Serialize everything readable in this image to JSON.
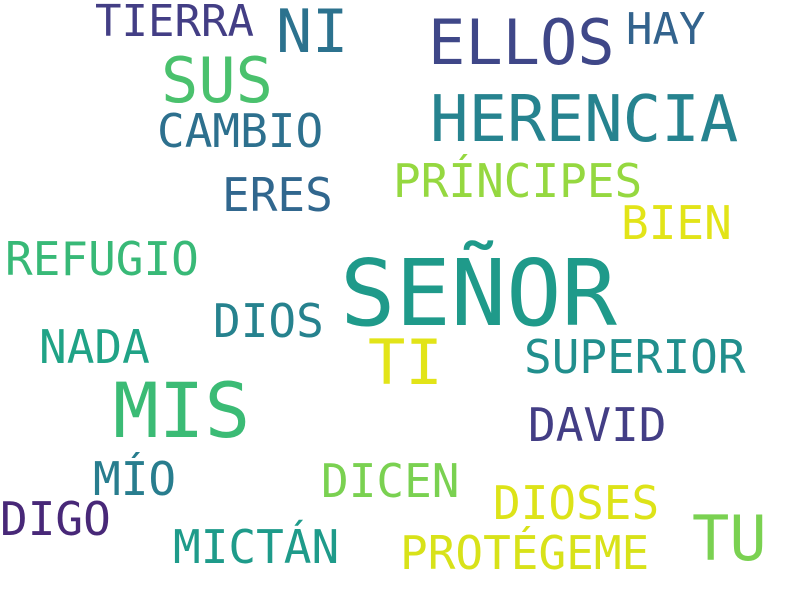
{
  "words": [
    {
      "text": "SEÑOR",
      "color": "#1f9a8a"
    },
    {
      "text": "HERENCIA",
      "color": "#26838f"
    },
    {
      "text": "MIS",
      "color": "#3bbb75"
    },
    {
      "text": "ELLOS",
      "color": "#3f4788"
    },
    {
      "text": "SUS",
      "color": "#4ac16d"
    },
    {
      "text": "NI",
      "color": "#2c728e"
    },
    {
      "text": "TI",
      "color": "#e2e418"
    },
    {
      "text": "TU",
      "color": "#7ad151"
    },
    {
      "text": "TIERRA",
      "color": "#433e85"
    },
    {
      "text": "HAY",
      "color": "#33638d"
    },
    {
      "text": "CAMBIO",
      "color": "#2d708e"
    },
    {
      "text": "PRÍNCIPES",
      "color": "#95d840"
    },
    {
      "text": "ERES",
      "color": "#31678e"
    },
    {
      "text": "BIEN",
      "color": "#e2e418"
    },
    {
      "text": "REFUGIO",
      "color": "#38b977"
    },
    {
      "text": "DIOS",
      "color": "#26828e"
    },
    {
      "text": "NADA",
      "color": "#20a386"
    },
    {
      "text": "SUPERIOR",
      "color": "#218f8d"
    },
    {
      "text": "DAVID",
      "color": "#433e85"
    },
    {
      "text": "MÍO",
      "color": "#287d8e"
    },
    {
      "text": "DICEN",
      "color": "#7ad151"
    },
    {
      "text": "DIOSES",
      "color": "#dde318"
    },
    {
      "text": "DIGO",
      "color": "#482878"
    },
    {
      "text": "MICTÁN",
      "color": "#1e9b8a"
    },
    {
      "text": "PROTÉGEME",
      "color": "#d8e219"
    }
  ]
}
